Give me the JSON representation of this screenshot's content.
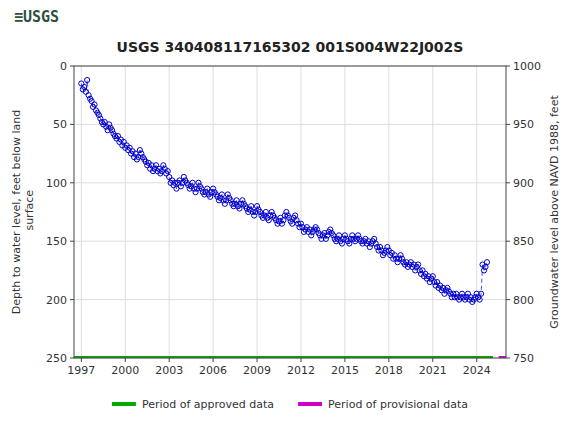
{
  "chart_data": {
    "type": "scatter",
    "title": "USGS 340408117165302 001S004W22J002S",
    "annotations": [
      {
        "text": "≡USGS"
      }
    ],
    "ylabel": "Depth to water level, feet below land\n surface",
    "y2label": "Groundwater level above NAVD 1988, feet",
    "xlim": [
      1996.5,
      2026.0
    ],
    "xticks": [
      1997,
      2000,
      2003,
      2006,
      2009,
      2012,
      2015,
      2018,
      2021,
      2024
    ],
    "ylim": [
      250,
      0
    ],
    "yticks": [
      0,
      50,
      100,
      150,
      200,
      250
    ],
    "y2lim": [
      750,
      1000
    ],
    "y2ticks": [
      750,
      800,
      850,
      900,
      950,
      1000
    ],
    "grid": true,
    "legend": "bottom",
    "series": [
      {
        "color": "#0000cc",
        "marker": "circle",
        "line_style": "dashed",
        "x": [
          1997,
          1997.1,
          1997.2,
          1997.3,
          1997.4,
          1997.5,
          1997.6,
          1997.7,
          1997.8,
          1997.9,
          1998,
          1998.1,
          1998.2,
          1998.3,
          1998.4,
          1998.5,
          1998.6,
          1998.7,
          1998.8,
          1998.9,
          1999,
          1999.1,
          1999.2,
          1999.3,
          1999.4,
          1999.5,
          1999.6,
          1999.7,
          1999.8,
          1999.9,
          2000,
          2000.1,
          2000.2,
          2000.3,
          2000.4,
          2000.5,
          2000.6,
          2000.7,
          2000.8,
          2000.9,
          2001,
          2001.1,
          2001.2,
          2001.3,
          2001.4,
          2001.5,
          2001.6,
          2001.7,
          2001.8,
          2001.9,
          2002,
          2002.1,
          2002.2,
          2002.3,
          2002.4,
          2002.5,
          2002.6,
          2002.7,
          2002.8,
          2002.9,
          2003,
          2003.1,
          2003.2,
          2003.3,
          2003.4,
          2003.5,
          2003.6,
          2003.7,
          2003.8,
          2003.9,
          2004,
          2004.1,
          2004.2,
          2004.3,
          2004.4,
          2004.5,
          2004.6,
          2004.7,
          2004.8,
          2004.9,
          2005,
          2005.1,
          2005.2,
          2005.3,
          2005.4,
          2005.5,
          2005.6,
          2005.7,
          2005.8,
          2005.9,
          2006,
          2006.1,
          2006.2,
          2006.3,
          2006.4,
          2006.5,
          2006.6,
          2006.7,
          2006.8,
          2006.9,
          2007,
          2007.1,
          2007.2,
          2007.3,
          2007.4,
          2007.5,
          2007.6,
          2007.7,
          2007.8,
          2007.9,
          2008,
          2008.1,
          2008.2,
          2008.3,
          2008.4,
          2008.5,
          2008.6,
          2008.7,
          2008.8,
          2008.9,
          2009,
          2009.1,
          2009.2,
          2009.3,
          2009.4,
          2009.5,
          2009.6,
          2009.7,
          2009.8,
          2009.9,
          2010,
          2010.1,
          2010.2,
          2010.3,
          2010.4,
          2010.5,
          2010.6,
          2010.7,
          2010.8,
          2010.9,
          2011,
          2011.1,
          2011.2,
          2011.3,
          2011.4,
          2011.5,
          2011.6,
          2011.7,
          2011.8,
          2011.9,
          2012,
          2012.1,
          2012.2,
          2012.3,
          2012.4,
          2012.5,
          2012.6,
          2012.7,
          2012.8,
          2012.9,
          2013,
          2013.1,
          2013.2,
          2013.3,
          2013.4,
          2013.5,
          2013.6,
          2013.7,
          2013.8,
          2013.9,
          2014,
          2014.1,
          2014.2,
          2014.3,
          2014.4,
          2014.5,
          2014.6,
          2014.7,
          2014.8,
          2014.9,
          2015,
          2015.1,
          2015.2,
          2015.3,
          2015.4,
          2015.5,
          2015.6,
          2015.7,
          2015.8,
          2015.9,
          2016,
          2016.1,
          2016.2,
          2016.3,
          2016.4,
          2016.5,
          2016.6,
          2016.7,
          2016.8,
          2016.9,
          2017,
          2017.1,
          2017.2,
          2017.3,
          2017.4,
          2017.5,
          2017.6,
          2017.7,
          2017.8,
          2017.9,
          2018,
          2018.1,
          2018.2,
          2018.3,
          2018.4,
          2018.5,
          2018.6,
          2018.7,
          2018.8,
          2018.9,
          2019,
          2019.1,
          2019.2,
          2019.3,
          2019.4,
          2019.5,
          2019.6,
          2019.7,
          2019.8,
          2019.9,
          2020,
          2020.1,
          2020.2,
          2020.3,
          2020.4,
          2020.5,
          2020.6,
          2020.7,
          2020.8,
          2020.9,
          2021,
          2021.1,
          2021.2,
          2021.3,
          2021.4,
          2021.5,
          2021.6,
          2021.7,
          2021.8,
          2021.9,
          2022,
          2022.1,
          2022.2,
          2022.3,
          2022.4,
          2022.5,
          2022.6,
          2022.7,
          2022.8,
          2022.9,
          2023,
          2023.1,
          2023.2,
          2023.3,
          2023.4,
          2023.5,
          2023.6,
          2023.7,
          2023.8,
          2023.9,
          2024,
          2024.1,
          2024.2,
          2024.3,
          2024.4,
          2024.5,
          2024.6,
          2024.7
        ],
        "values": [
          15,
          20,
          18,
          22,
          12,
          25,
          28,
          30,
          35,
          33,
          38,
          40,
          42,
          45,
          48,
          50,
          48,
          52,
          55,
          50,
          53,
          55,
          58,
          60,
          62,
          60,
          65,
          63,
          68,
          65,
          70,
          68,
          72,
          70,
          75,
          73,
          78,
          75,
          80,
          78,
          72,
          75,
          78,
          80,
          82,
          85,
          83,
          88,
          85,
          90,
          88,
          85,
          90,
          88,
          92,
          90,
          85,
          88,
          92,
          90,
          95,
          100,
          98,
          102,
          100,
          105,
          100,
          98,
          103,
          100,
          95,
          98,
          100,
          102,
          105,
          103,
          100,
          105,
          108,
          105,
          100,
          103,
          105,
          108,
          110,
          108,
          105,
          110,
          112,
          108,
          105,
          108,
          110,
          112,
          115,
          113,
          110,
          115,
          118,
          115,
          110,
          113,
          115,
          118,
          120,
          118,
          115,
          120,
          122,
          118,
          115,
          118,
          120,
          122,
          125,
          123,
          120,
          125,
          128,
          125,
          120,
          123,
          125,
          128,
          130,
          128,
          125,
          130,
          132,
          128,
          125,
          128,
          130,
          132,
          135,
          133,
          130,
          135,
          132,
          128,
          125,
          128,
          130,
          133,
          135,
          130,
          128,
          132,
          135,
          138,
          135,
          138,
          142,
          140,
          138,
          142,
          140,
          145,
          142,
          140,
          138,
          140,
          143,
          145,
          148,
          145,
          143,
          148,
          145,
          142,
          140,
          143,
          145,
          148,
          150,
          148,
          145,
          150,
          152,
          148,
          145,
          148,
          150,
          152,
          148,
          145,
          148,
          150,
          148,
          145,
          148,
          150,
          152,
          150,
          148,
          152,
          150,
          155,
          152,
          150,
          148,
          152,
          155,
          158,
          155,
          158,
          162,
          160,
          158,
          155,
          158,
          162,
          160,
          165,
          162,
          165,
          168,
          165,
          162,
          165,
          168,
          170,
          168,
          172,
          170,
          168,
          172,
          170,
          175,
          172,
          170,
          175,
          178,
          175,
          180,
          178,
          182,
          180,
          185,
          182,
          180,
          185,
          188,
          185,
          190,
          188,
          192,
          190,
          195,
          192,
          190,
          193,
          195,
          198,
          195,
          198,
          195,
          198,
          200,
          198,
          195,
          198,
          200,
          198,
          195,
          200,
          198,
          202,
          200,
          198,
          195,
          198,
          200,
          195,
          170,
          175,
          172,
          168
        ]
      },
      {
        "name": "Period of approved data",
        "type": "line",
        "line_style": "solid",
        "color": "#00aa00",
        "x": [
          1996.5,
          2025.115
        ],
        "values": [
          250,
          250
        ]
      },
      {
        "name": "Period of provisional data",
        "type": "line",
        "line_style": "solid",
        "color": "#cc00cc",
        "x": [
          2025.5,
          2026.0
        ],
        "values": [
          250,
          250
        ]
      }
    ]
  }
}
